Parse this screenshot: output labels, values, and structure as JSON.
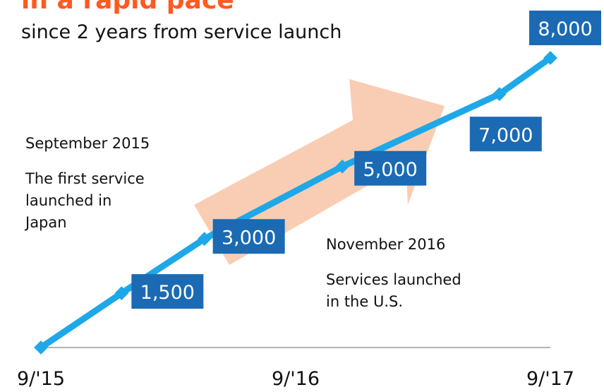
{
  "chart_data": {
    "type": "line",
    "title": "in a rapid pace",
    "subtitle": "since 2 years from service launch",
    "x": [
      0,
      3.8,
      7.7,
      14.2,
      21.6,
      24
    ],
    "values": [
      0,
      1500,
      3000,
      5000,
      7000,
      8000
    ],
    "value_labels": [
      null,
      "1,500",
      "3,000",
      "5,000",
      "7,000",
      "8,000"
    ],
    "color": "#1ea8e8",
    "label_color": "#1b6ab3",
    "xlim": [
      0,
      24
    ],
    "xticks": [
      {
        "value": 0,
        "label": "9/'15"
      },
      {
        "value": 12,
        "label": "9/'16"
      },
      {
        "value": 24,
        "label": "9/'17"
      }
    ],
    "ylim": [
      0,
      8000
    ],
    "annotations": [
      {
        "heading": "September 2015",
        "lines": [
          "The first service",
          "launched in",
          "Japan"
        ]
      },
      {
        "heading": "November 2016",
        "lines": [
          "Services launched",
          "in the U.S."
        ]
      }
    ]
  }
}
